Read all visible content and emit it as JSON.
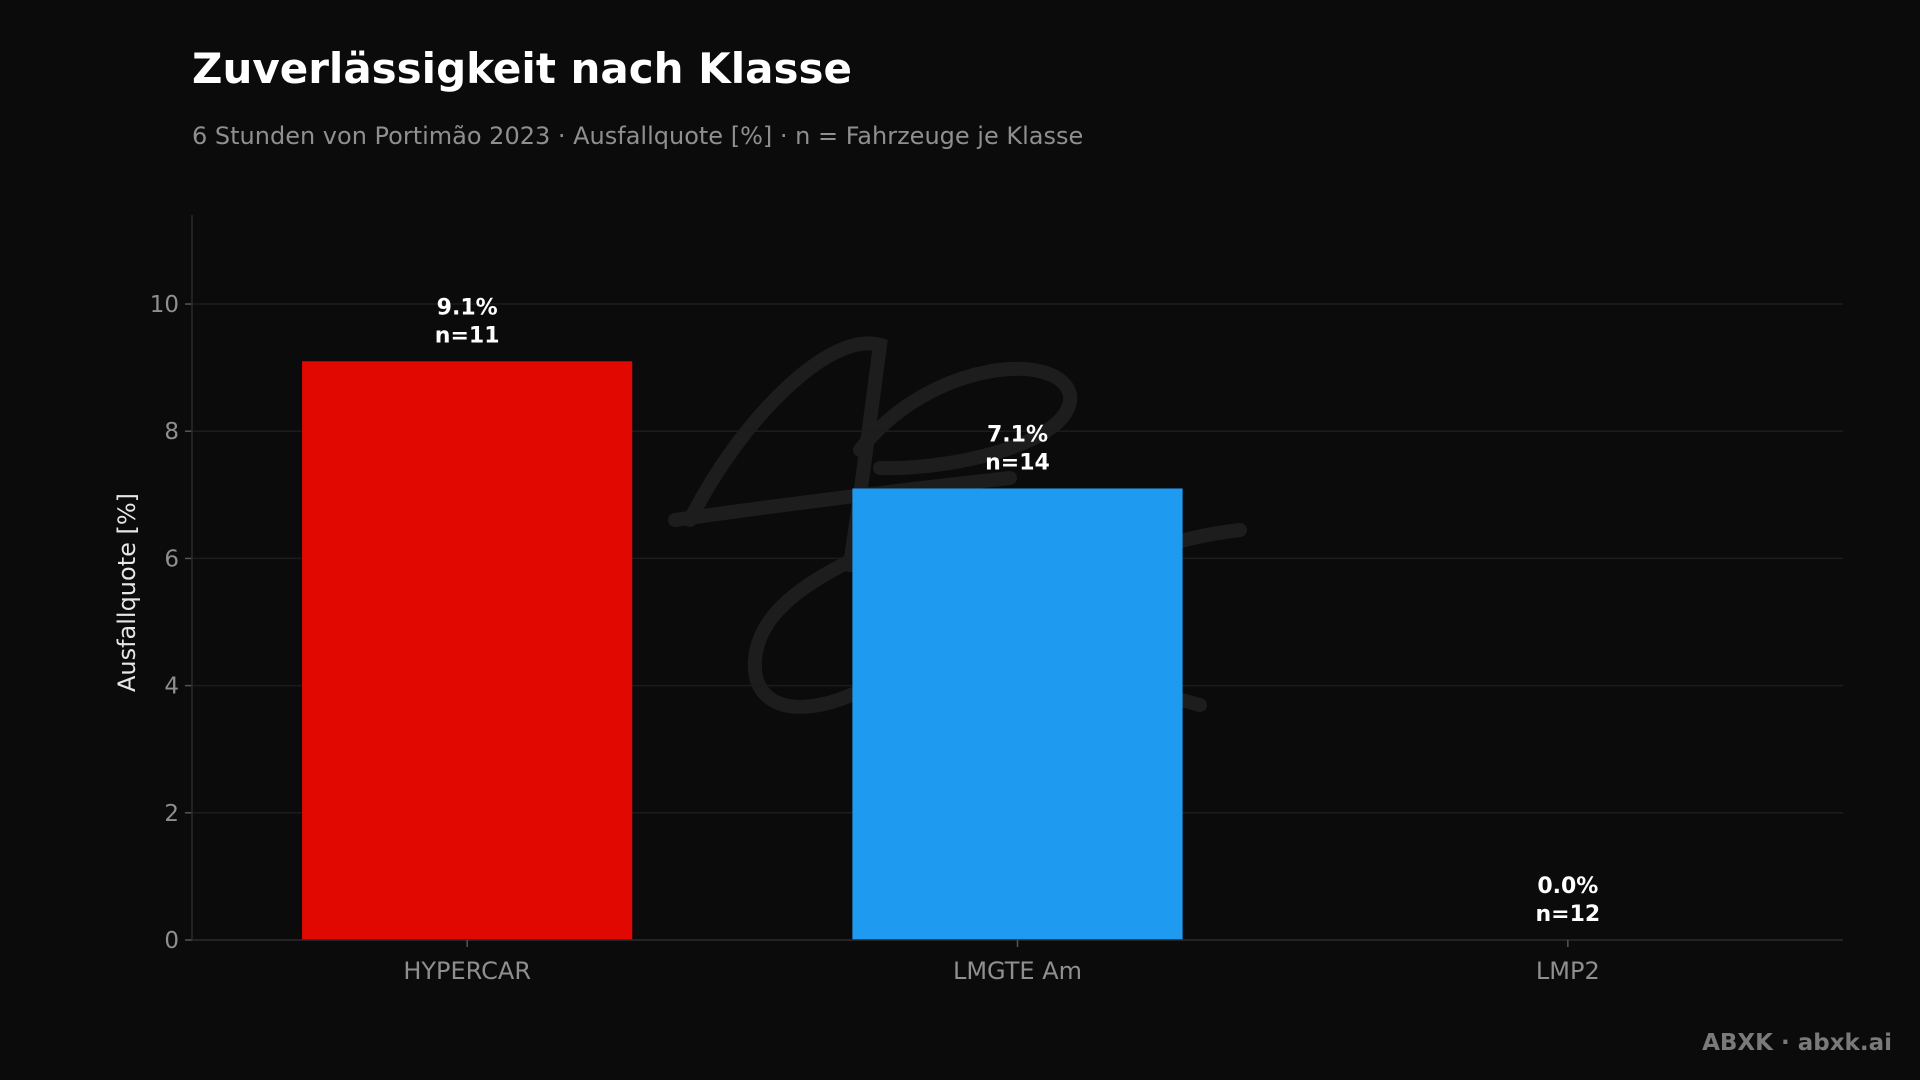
{
  "header": {
    "title": "Zuverlässigkeit nach Klasse",
    "subtitle": "6 Stunden von Portimão 2023 · Ausfallquote [%] · n = Fahrzeuge je Klasse"
  },
  "footer": {
    "credit": "ABXK · abxk.ai"
  },
  "watermark": {
    "logo_text": "ABXK"
  },
  "chart_data": {
    "type": "bar",
    "title": "Zuverlässigkeit nach Klasse",
    "subtitle": "6 Stunden von Portimão 2023 · Ausfallquote [%] · n = Fahrzeuge je Klasse",
    "xlabel": "",
    "ylabel": "Ausfallquote [%]",
    "ylim": [
      0,
      11.4
    ],
    "yticks": [
      0,
      2,
      4,
      6,
      8,
      10
    ],
    "grid": true,
    "categories": [
      "HYPERCAR",
      "LMGTE Am",
      "LMP2"
    ],
    "values": [
      9.1,
      7.1,
      0.0
    ],
    "n": [
      11,
      14,
      12
    ],
    "value_labels": [
      "9.1%",
      "7.1%",
      "0.0%"
    ],
    "n_labels": [
      "n=11",
      "n=14",
      "n=12"
    ],
    "colors": [
      "#e00800",
      "#1e9bf0",
      "#7b1fa2"
    ]
  }
}
